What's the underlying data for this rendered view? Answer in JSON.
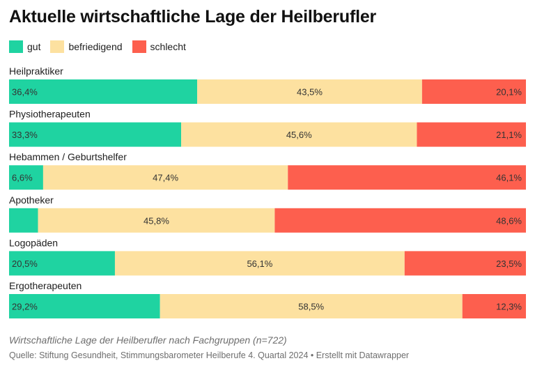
{
  "title": "Aktuelle wirtschaftliche Lage der Heilberufler",
  "footer": {
    "description": "Wirtschaftliche Lage der Heilberufler nach Fachgruppen (n=722)",
    "source": "Quelle: Stiftung Gesundheit, Stimmungsbarometer Heilberufe 4. Quartal 2024 • Erstellt mit Datawrapper"
  },
  "colors": {
    "gut": "#1fd3a1",
    "befriedigend": "#fde1a0",
    "schlecht": "#fd5f4e"
  },
  "chart_data": {
    "type": "bar",
    "orientation": "horizontal",
    "stacked": true,
    "normalized_to_100": true,
    "categories": [
      "Heilpraktiker",
      "Physiotherapeuten",
      "Hebammen / Geburtshelfer",
      "Apotheker",
      "Logopäden",
      "Ergotherapeuten"
    ],
    "series": [
      {
        "name": "gut",
        "color": "#1fd3a1",
        "values": [
          36.4,
          33.3,
          6.6,
          5.6,
          20.5,
          29.2
        ],
        "labels": [
          "36,4%",
          "33,3%",
          "6,6%",
          "",
          "20,5%",
          "29,2%"
        ]
      },
      {
        "name": "befriedigend",
        "color": "#fde1a0",
        "values": [
          43.5,
          45.6,
          47.4,
          45.8,
          56.1,
          58.5
        ],
        "labels": [
          "43,5%",
          "45,6%",
          "47,4%",
          "45,8%",
          "56,1%",
          "58,5%"
        ]
      },
      {
        "name": "schlecht",
        "color": "#fd5f4e",
        "values": [
          20.1,
          21.1,
          46.1,
          48.6,
          23.5,
          12.3
        ],
        "labels": [
          "20,1%",
          "21,1%",
          "46,1%",
          "48,6%",
          "23,5%",
          "12,3%"
        ]
      }
    ],
    "legend": "top-left",
    "grid": false
  }
}
